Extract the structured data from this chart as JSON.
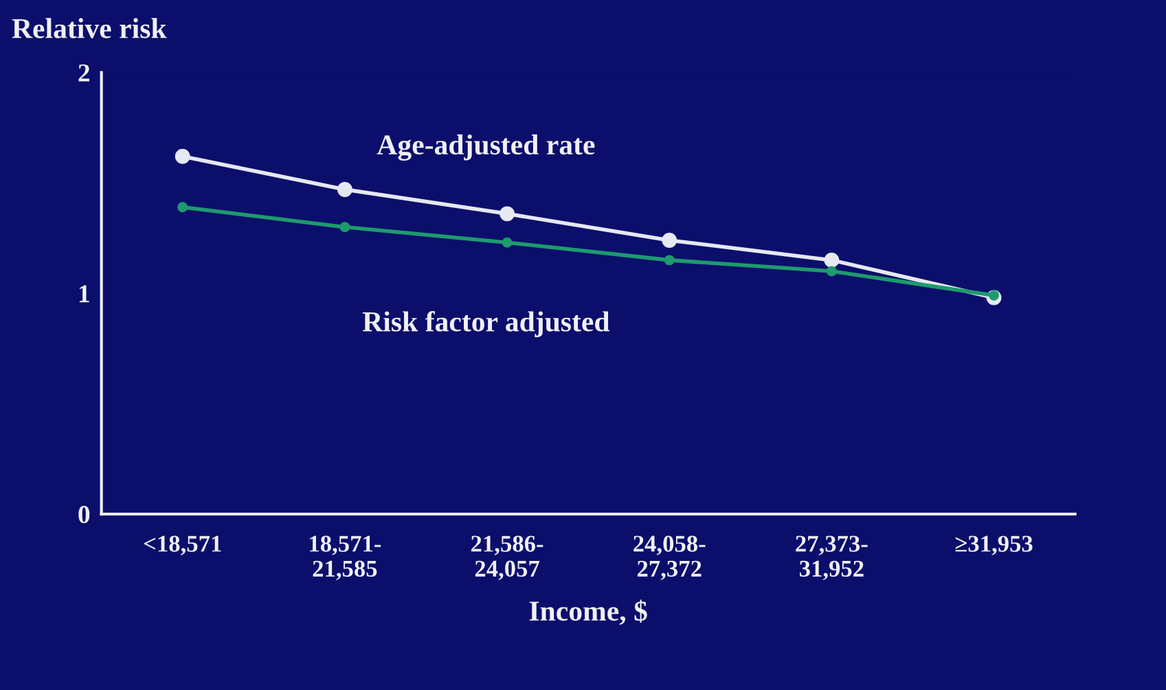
{
  "chart_data": {
    "type": "line",
    "ylabel": "Relative risk",
    "xlabel": "Income, $",
    "categories": [
      "<18,571",
      "18,571-\n21,585",
      "21,586-\n24,057",
      "24,058-\n27,372",
      "27,373-\n31,952",
      "≥31,953"
    ],
    "series": [
      {
        "name": "Age-adjusted rate",
        "color": "#e6e8f2",
        "values": [
          1.62,
          1.47,
          1.36,
          1.24,
          1.15,
          0.98
        ]
      },
      {
        "name": "Risk factor adjusted",
        "color": "#1e9a6e",
        "values": [
          1.39,
          1.3,
          1.23,
          1.15,
          1.1,
          0.99
        ]
      }
    ],
    "ylim": [
      0,
      2
    ],
    "yticks": [
      0,
      1,
      2
    ],
    "grid": false,
    "legend": false,
    "marker": "circle",
    "line_style": "solid"
  }
}
